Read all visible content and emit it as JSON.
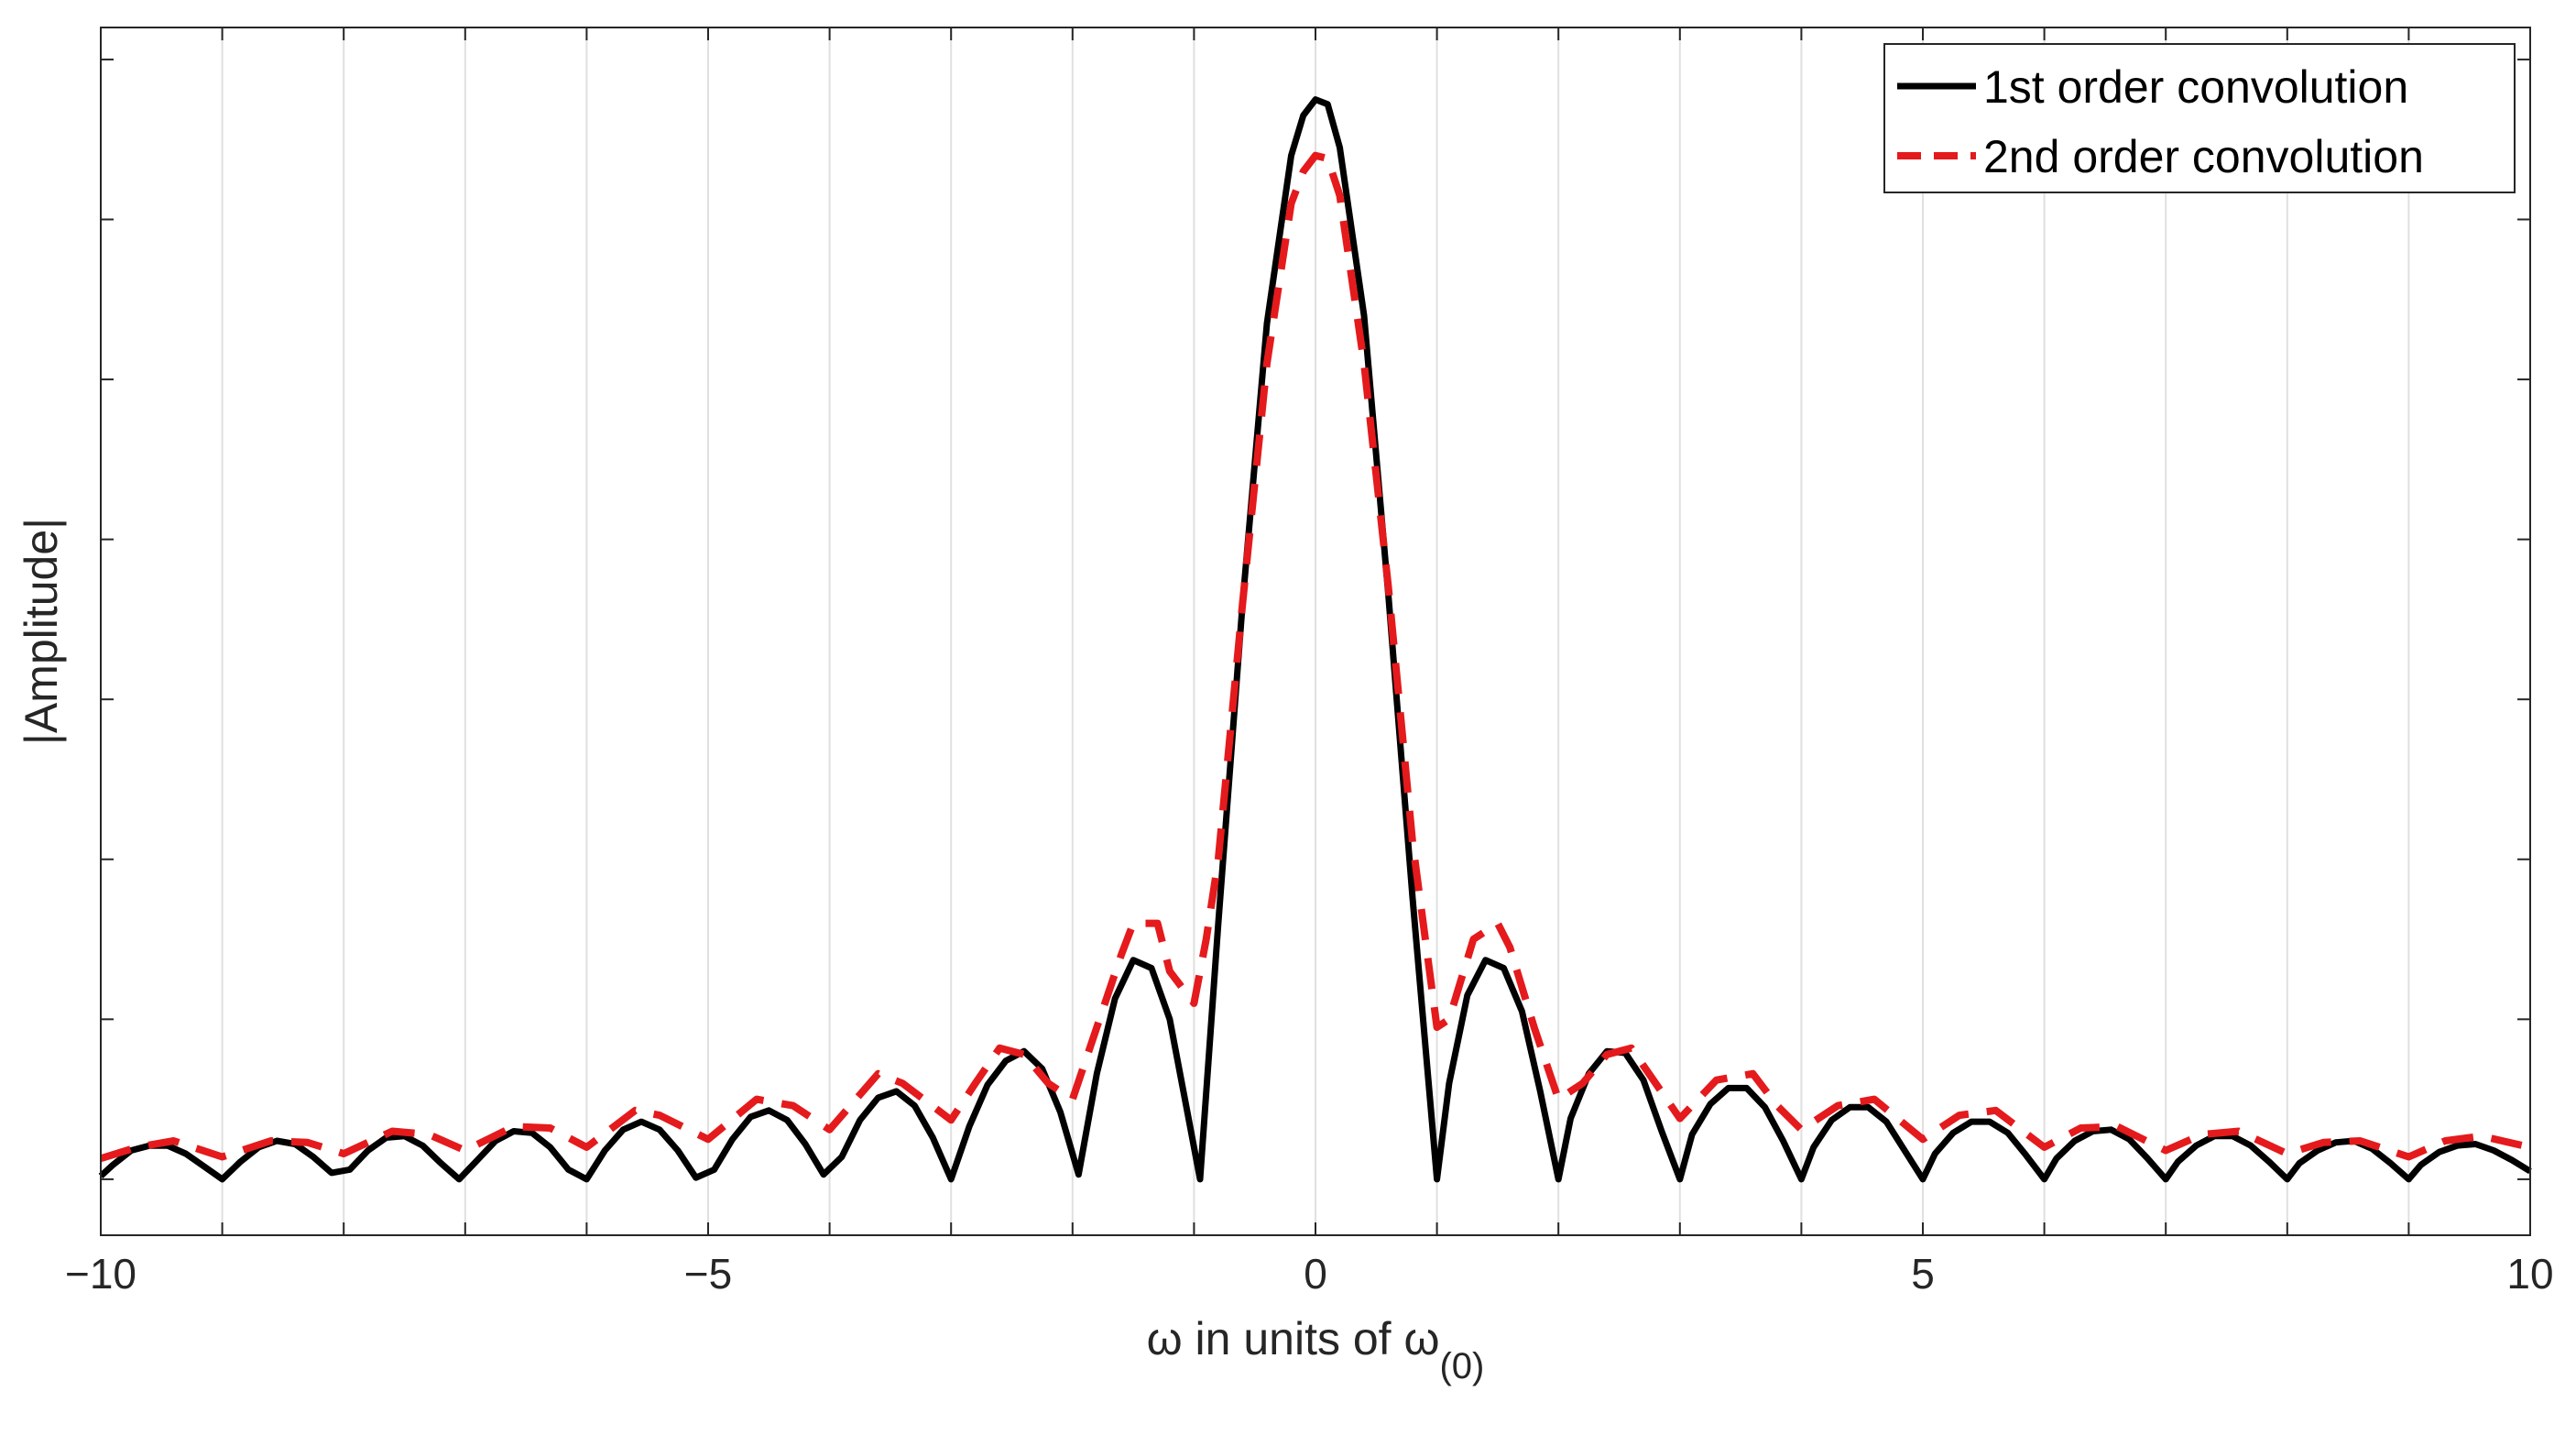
{
  "chart_data": {
    "type": "line",
    "title": "",
    "xlabel": {
      "main": "ω in units of ω",
      "subscript": "(0)"
    },
    "ylabel": "|Amplitude|",
    "xlim": [
      -10,
      10
    ],
    "ylim": [
      -0.035,
      0.72
    ],
    "xticks": [
      -10,
      -5,
      0,
      5,
      10
    ],
    "xtick_labels": [
      "−10",
      "−5",
      "0",
      "5",
      "10"
    ],
    "yticks": [
      0,
      0.1,
      0.2,
      0.3,
      0.4,
      0.5,
      0.6,
      0.7
    ],
    "grid": "vertical",
    "legend_position": "top-right",
    "series": [
      {
        "name": "1st order convolution",
        "color": "#000000",
        "style": "solid",
        "x": [
          -10,
          -9.9,
          -9.75,
          -9.6,
          -9.45,
          -9.3,
          -9.15,
          -9.0,
          -8.85,
          -8.7,
          -8.55,
          -8.4,
          -8.25,
          -8.1,
          -7.95,
          -7.8,
          -7.65,
          -7.5,
          -7.35,
          -7.2,
          -7.05,
          -6.9,
          -6.75,
          -6.6,
          -6.45,
          -6.3,
          -6.15,
          -6.0,
          -5.85,
          -5.7,
          -5.55,
          -5.4,
          -5.25,
          -5.1,
          -4.95,
          -4.8,
          -4.65,
          -4.5,
          -4.35,
          -4.2,
          -4.05,
          -3.9,
          -3.75,
          -3.6,
          -3.45,
          -3.3,
          -3.15,
          -3.0,
          -2.85,
          -2.7,
          -2.55,
          -2.4,
          -2.25,
          -2.1,
          -1.95,
          -1.8,
          -1.65,
          -1.5,
          -1.35,
          -1.2,
          -1.05,
          -0.95,
          -0.8,
          -0.6,
          -0.4,
          -0.2,
          -0.1,
          0.0,
          0.1,
          0.2,
          0.4,
          0.6,
          0.8,
          1.0,
          1.1,
          1.25,
          1.4,
          1.55,
          1.7,
          1.85,
          2.0,
          2.1,
          2.25,
          2.4,
          2.55,
          2.7,
          2.85,
          3.0,
          3.1,
          3.25,
          3.4,
          3.55,
          3.7,
          3.85,
          4.0,
          4.1,
          4.25,
          4.4,
          4.55,
          4.7,
          4.85,
          5.0,
          5.1,
          5.25,
          5.4,
          5.55,
          5.7,
          5.85,
          6.0,
          6.1,
          6.25,
          6.4,
          6.55,
          6.7,
          6.85,
          7.0,
          7.1,
          7.25,
          7.4,
          7.55,
          7.7,
          7.85,
          8.0,
          8.1,
          8.25,
          8.4,
          8.55,
          8.7,
          8.85,
          9.0,
          9.1,
          9.25,
          9.4,
          9.55,
          9.7,
          9.85,
          10.0
        ],
        "y": [
          0.002,
          0.009,
          0.018,
          0.021,
          0.021,
          0.016,
          0.008,
          0.0,
          0.011,
          0.02,
          0.024,
          0.022,
          0.014,
          0.004,
          0.006,
          0.018,
          0.026,
          0.027,
          0.021,
          0.01,
          0.0,
          0.012,
          0.024,
          0.03,
          0.029,
          0.02,
          0.006,
          0.0,
          0.018,
          0.031,
          0.036,
          0.031,
          0.018,
          0.001,
          0.006,
          0.025,
          0.039,
          0.043,
          0.037,
          0.022,
          0.003,
          0.014,
          0.037,
          0.051,
          0.055,
          0.046,
          0.026,
          0.0,
          0.033,
          0.059,
          0.074,
          0.08,
          0.069,
          0.042,
          0.003,
          0.066,
          0.113,
          0.137,
          0.132,
          0.1,
          0.04,
          0.0,
          0.16,
          0.36,
          0.535,
          0.64,
          0.665,
          0.675,
          0.672,
          0.645,
          0.54,
          0.365,
          0.175,
          0.0,
          0.06,
          0.115,
          0.137,
          0.132,
          0.105,
          0.055,
          0.0,
          0.038,
          0.066,
          0.08,
          0.079,
          0.062,
          0.03,
          0.0,
          0.028,
          0.047,
          0.057,
          0.057,
          0.045,
          0.024,
          0.0,
          0.02,
          0.037,
          0.045,
          0.045,
          0.036,
          0.018,
          0.0,
          0.016,
          0.029,
          0.036,
          0.036,
          0.029,
          0.015,
          0.0,
          0.013,
          0.024,
          0.03,
          0.031,
          0.025,
          0.013,
          0.0,
          0.011,
          0.021,
          0.027,
          0.027,
          0.021,
          0.011,
          0.0,
          0.01,
          0.018,
          0.023,
          0.024,
          0.019,
          0.01,
          0.0,
          0.009,
          0.017,
          0.021,
          0.022,
          0.018,
          0.012,
          0.005
        ]
      },
      {
        "name": "2nd order convolution",
        "color": "#e41a1c",
        "style": "dashed",
        "x": [
          -10,
          -9.7,
          -9.4,
          -9.0,
          -8.6,
          -8.3,
          -8.0,
          -7.6,
          -7.3,
          -7.0,
          -6.6,
          -6.3,
          -6.0,
          -5.6,
          -5.4,
          -5.0,
          -4.6,
          -4.3,
          -4.0,
          -3.6,
          -3.4,
          -3.0,
          -2.8,
          -2.6,
          -2.4,
          -2.2,
          -2.0,
          -1.8,
          -1.6,
          -1.5,
          -1.3,
          -1.2,
          -1.0,
          -0.9,
          -0.8,
          -0.6,
          -0.4,
          -0.2,
          -0.1,
          0.0,
          0.1,
          0.2,
          0.4,
          0.6,
          0.8,
          1.0,
          1.1,
          1.2,
          1.3,
          1.5,
          1.6,
          1.8,
          2.0,
          2.2,
          2.4,
          2.6,
          2.8,
          3.0,
          3.3,
          3.6,
          3.8,
          4.0,
          4.3,
          4.6,
          5.0,
          5.3,
          5.6,
          6.0,
          6.3,
          6.6,
          7.0,
          7.3,
          7.6,
          8.0,
          8.3,
          8.6,
          9.0,
          9.3,
          9.6,
          10.0
        ],
        "y": [
          0.013,
          0.02,
          0.024,
          0.014,
          0.024,
          0.023,
          0.016,
          0.03,
          0.028,
          0.018,
          0.033,
          0.032,
          0.02,
          0.043,
          0.04,
          0.025,
          0.05,
          0.046,
          0.031,
          0.066,
          0.06,
          0.037,
          0.06,
          0.082,
          0.078,
          0.06,
          0.05,
          0.095,
          0.14,
          0.16,
          0.16,
          0.13,
          0.11,
          0.15,
          0.2,
          0.36,
          0.51,
          0.61,
          0.63,
          0.64,
          0.638,
          0.615,
          0.51,
          0.37,
          0.21,
          0.095,
          0.1,
          0.125,
          0.15,
          0.16,
          0.145,
          0.095,
          0.05,
          0.06,
          0.078,
          0.082,
          0.06,
          0.038,
          0.062,
          0.066,
          0.046,
          0.031,
          0.046,
          0.05,
          0.025,
          0.04,
          0.043,
          0.02,
          0.032,
          0.033,
          0.018,
          0.028,
          0.03,
          0.016,
          0.023,
          0.024,
          0.014,
          0.024,
          0.027,
          0.02
        ]
      }
    ]
  }
}
